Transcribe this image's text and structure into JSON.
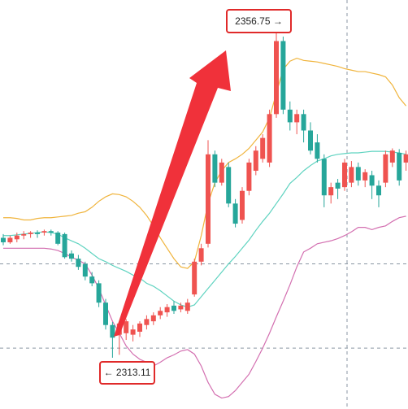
{
  "chart_data": {
    "type": "candlestick",
    "ylim": [
      2306.23,
      2361.11
    ],
    "up_color": "#ef5350",
    "down_color": "#26a69a",
    "open": [
      2329.2,
      2328.6,
      2329.0,
      2329.5,
      2329.7,
      2329.9,
      2329.9,
      2330.1,
      2329.9,
      2329.7,
      2327.1,
      2326.4,
      2325.7,
      2324.0,
      2323.1,
      2320.5,
      2317.5,
      2316.2,
      2316.4,
      2316.2,
      2316.6,
      2317.5,
      2318.0,
      2318.8,
      2319.2,
      2320.1,
      2319.6,
      2319.4,
      2321.6,
      2326.0,
      2328.4,
      2340.4,
      2336.6,
      2338.7,
      2333.8,
      2331.6,
      2335.5,
      2338.2,
      2339.8,
      2339.3,
      2345.8,
      2355.6,
      2346.4,
      2344.7,
      2345.8,
      2343.6,
      2342.0,
      2339.8,
      2334.9,
      2336.6,
      2336.0,
      2336.6,
      2338.7,
      2336.9,
      2337.6,
      2336.2,
      2336.6,
      2339.3,
      2340.6,
      2339.3
    ],
    "high": [
      2329.7,
      2329.5,
      2329.9,
      2330.1,
      2330.1,
      2330.2,
      2330.3,
      2330.3,
      2330.1,
      2329.9,
      2327.5,
      2326.9,
      2326.0,
      2324.6,
      2323.5,
      2321.0,
      2317.9,
      2318.0,
      2318.3,
      2317.5,
      2318.0,
      2318.8,
      2319.2,
      2319.9,
      2320.3,
      2320.7,
      2320.5,
      2321.0,
      2326.4,
      2328.4,
      2342.3,
      2340.9,
      2339.8,
      2339.3,
      2334.4,
      2336.0,
      2339.8,
      2341.5,
      2343.1,
      2346.4,
      2356.75,
      2356.2,
      2347.5,
      2346.4,
      2346.4,
      2344.7,
      2343.1,
      2340.4,
      2336.6,
      2337.1,
      2339.8,
      2339.5,
      2339.3,
      2338.4,
      2338.2,
      2336.9,
      2340.9,
      2341.2,
      2341.1,
      2340.9
    ],
    "low": [
      2328.2,
      2328.4,
      2328.6,
      2329.0,
      2329.2,
      2329.2,
      2329.5,
      2329.5,
      2328.2,
      2326.4,
      2326.0,
      2324.9,
      2323.5,
      2322.7,
      2319.9,
      2316.9,
      2313.11,
      2313.5,
      2315.5,
      2315.3,
      2315.9,
      2316.9,
      2317.5,
      2318.3,
      2318.6,
      2319.0,
      2319.2,
      2319.0,
      2321.3,
      2325.5,
      2327.9,
      2336.0,
      2336.2,
      2333.3,
      2330.6,
      2331.1,
      2334.9,
      2337.6,
      2339.3,
      2338.7,
      2345.3,
      2345.8,
      2343.6,
      2343.1,
      2342.0,
      2340.4,
      2339.3,
      2333.3,
      2333.8,
      2334.4,
      2335.5,
      2336.0,
      2336.2,
      2336.0,
      2334.4,
      2333.3,
      2336.0,
      2338.7,
      2336.2,
      2338.2
    ],
    "close": [
      2328.6,
      2329.2,
      2329.5,
      2329.7,
      2329.9,
      2329.7,
      2330.1,
      2329.9,
      2328.4,
      2326.6,
      2326.4,
      2325.3,
      2324.0,
      2323.1,
      2320.5,
      2317.5,
      2315.8,
      2317.7,
      2318.0,
      2316.9,
      2317.7,
      2318.3,
      2318.8,
      2319.4,
      2319.9,
      2319.4,
      2320.1,
      2320.5,
      2326.0,
      2327.8,
      2340.4,
      2336.6,
      2339.3,
      2333.8,
      2331.1,
      2335.5,
      2339.3,
      2340.9,
      2342.6,
      2345.8,
      2355.6,
      2346.4,
      2344.7,
      2345.8,
      2343.6,
      2340.9,
      2339.8,
      2334.9,
      2336.0,
      2335.8,
      2339.3,
      2338.7,
      2336.9,
      2338.0,
      2336.2,
      2334.9,
      2340.4,
      2340.9,
      2336.9,
      2340.4
    ],
    "bands": {
      "upper": {
        "color": "#f0b43c",
        "values": [
          2331.9,
          2331.9,
          2331.8,
          2331.6,
          2331.6,
          2331.8,
          2331.9,
          2331.9,
          2332.0,
          2332.1,
          2332.2,
          2332.5,
          2332.7,
          2333.3,
          2334.1,
          2334.7,
          2335.1,
          2335.0,
          2334.7,
          2334.1,
          2333.3,
          2332.2,
          2330.8,
          2329.2,
          2327.8,
          2326.4,
          2325.3,
          2325.1,
          2326.0,
          2329.5,
          2333.8,
          2336.6,
          2338.2,
          2339.3,
          2339.8,
          2340.4,
          2341.2,
          2342.3,
          2343.4,
          2345.3,
          2348.6,
          2351.8,
          2352.9,
          2353.3,
          2353.0,
          2352.9,
          2352.8,
          2352.6,
          2352.4,
          2352.2,
          2351.9,
          2351.7,
          2351.5,
          2351.5,
          2351.3,
          2351.1,
          2350.8,
          2349.7,
          2348.0,
          2346.9
        ]
      },
      "middle": {
        "color": "#5fd3c0",
        "values": [
          2329.5,
          2329.5,
          2329.6,
          2329.7,
          2329.8,
          2329.9,
          2330.0,
          2329.9,
          2329.7,
          2329.2,
          2328.8,
          2328.4,
          2327.8,
          2327.1,
          2326.4,
          2326.0,
          2325.5,
          2325.1,
          2324.7,
          2324.2,
          2323.8,
          2323.1,
          2322.7,
          2322.1,
          2321.4,
          2320.7,
          2320.2,
          2319.9,
          2320.2,
          2321.3,
          2322.4,
          2323.5,
          2324.6,
          2325.7,
          2326.7,
          2327.8,
          2328.9,
          2330.2,
          2331.4,
          2332.5,
          2333.8,
          2335.1,
          2336.5,
          2337.3,
          2338.2,
          2338.9,
          2339.5,
          2339.8,
          2340.2,
          2340.4,
          2340.5,
          2340.6,
          2340.6,
          2340.7,
          2340.8,
          2340.8,
          2340.8,
          2340.7,
          2340.6,
          2340.4
        ]
      },
      "lower": {
        "color": "#d36fb0",
        "values": [
          2327.8,
          2327.8,
          2327.8,
          2327.8,
          2327.8,
          2327.8,
          2327.8,
          2327.7,
          2327.5,
          2327.1,
          2326.6,
          2326.2,
          2325.7,
          2324.2,
          2322.4,
          2320.2,
          2318.0,
          2316.4,
          2314.7,
          2313.6,
          2312.9,
          2312.5,
          2312.0,
          2312.5,
          2313.1,
          2313.5,
          2314.0,
          2314.2,
          2313.6,
          2312.0,
          2309.8,
          2308.2,
          2307.7,
          2307.9,
          2308.7,
          2309.8,
          2310.9,
          2312.6,
          2314.4,
          2316.4,
          2318.6,
          2320.7,
          2322.9,
          2325.3,
          2327.3,
          2327.8,
          2328.4,
          2328.6,
          2328.8,
          2329.1,
          2329.5,
          2330.0,
          2330.6,
          2330.6,
          2330.3,
          2330.6,
          2330.8,
          2331.4,
          2331.9,
          2332.1
        ]
      }
    },
    "hlines": [
      2325.7,
      2314.4
    ],
    "annotations": [
      {
        "text": "2356.75 →"
      },
      {
        "text": "← 2313.11"
      }
    ]
  }
}
